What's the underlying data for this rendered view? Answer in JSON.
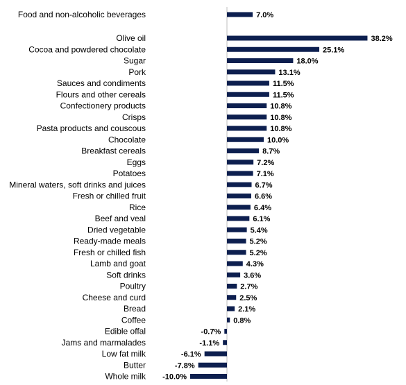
{
  "chart_data": {
    "type": "bar",
    "orientation": "horizontal",
    "title": "",
    "xlabel": "",
    "ylabel": "",
    "value_suffix": "%",
    "grid": false,
    "bar_color": "#0d1f4f",
    "axis_color": "#bfbfbf",
    "xlim": [
      -10.0,
      38.2
    ],
    "highlight": {
      "category": "Food and non-alcoholic beverages",
      "value": 7.0
    },
    "categories": [
      "Olive oil",
      "Cocoa and powdered chocolate",
      "Sugar",
      "Pork",
      "Sauces and condiments",
      "Flours and other cereals",
      "Confectionery products",
      "Crisps",
      "Pasta products and couscous",
      "Chocolate",
      "Breakfast cereals",
      "Eggs",
      "Potatoes",
      "Mineral waters, soft drinks and juices",
      "Fresh or chilled fruit",
      "Rice",
      "Beef and veal",
      "Dried vegetable",
      "Ready-made meals",
      "Fresh or chilled fish",
      "Lamb and goat",
      "Soft drinks",
      "Poultry",
      "Cheese and curd",
      "Bread",
      "Coffee",
      "Edible offal",
      "Jams and marmalades",
      "Low fat milk",
      "Butter",
      "Whole milk"
    ],
    "values": [
      38.2,
      25.1,
      18.0,
      13.1,
      11.5,
      11.5,
      10.8,
      10.8,
      10.8,
      10.0,
      8.7,
      7.2,
      7.1,
      6.7,
      6.6,
      6.4,
      6.1,
      5.4,
      5.2,
      5.2,
      4.3,
      3.6,
      2.7,
      2.5,
      2.1,
      0.8,
      -0.7,
      -1.1,
      -6.1,
      -7.8,
      -10.0
    ]
  }
}
